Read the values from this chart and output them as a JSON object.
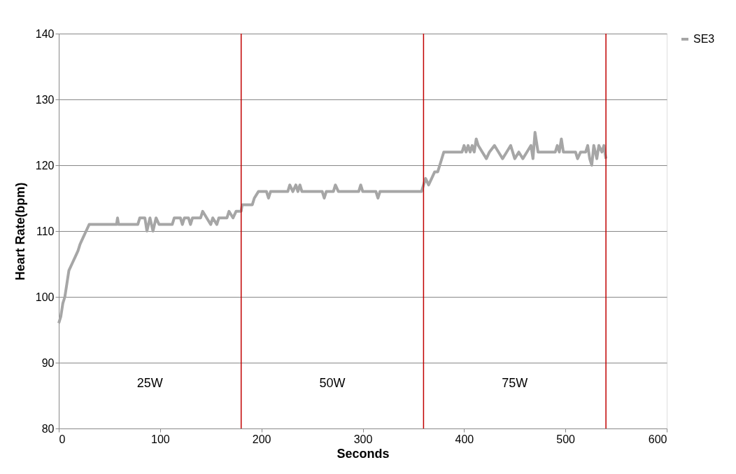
{
  "chart_data": {
    "type": "line",
    "xlabel": "Seconds",
    "ylabel": "Heart Rate(bpm)",
    "xlim": [
      0,
      600
    ],
    "xticks": [
      0,
      100,
      200,
      300,
      400,
      500,
      600
    ],
    "ylim": [
      80,
      140
    ],
    "yticks": [
      80,
      90,
      100,
      110,
      120,
      130,
      140
    ],
    "grid": "y",
    "legend": "right",
    "marker": "none",
    "line_style": "solid",
    "series": [
      {
        "name": "SE3",
        "color": "#a6a6a6",
        "x": [
          0,
          2,
          4,
          6,
          8,
          10,
          13,
          16,
          19,
          21,
          24,
          27,
          30,
          57,
          58,
          59,
          78,
          80,
          85,
          87,
          90,
          93,
          96,
          99,
          112,
          114,
          120,
          122,
          124,
          128,
          130,
          132,
          140,
          142,
          146,
          150,
          152,
          156,
          158,
          166,
          168,
          172,
          175,
          180,
          181,
          191,
          193,
          197,
          205,
          207,
          209,
          226,
          228,
          231,
          234,
          236,
          238,
          240,
          260,
          262,
          264,
          271,
          273,
          276,
          296,
          298,
          300,
          313,
          315,
          317,
          358,
          360,
          362,
          365,
          368,
          371,
          374,
          376,
          378,
          380,
          398,
          400,
          402,
          404,
          406,
          408,
          410,
          412,
          414,
          418,
          422,
          425,
          430,
          434,
          438,
          442,
          446,
          450,
          454,
          458,
          462,
          466,
          468,
          470,
          473,
          490,
          492,
          494,
          496,
          498,
          510,
          512,
          515,
          520,
          522,
          524,
          526,
          528,
          531,
          533,
          536,
          538,
          540
        ],
        "values": [
          96,
          97,
          99,
          100,
          102,
          104,
          105,
          106,
          107,
          108,
          109,
          110,
          111,
          111,
          112,
          111,
          111,
          112,
          112,
          110,
          112,
          110,
          112,
          111,
          111,
          112,
          112,
          111,
          112,
          112,
          111,
          112,
          112,
          113,
          112,
          111,
          112,
          111,
          112,
          112,
          113,
          112,
          113,
          113,
          114,
          114,
          115,
          116,
          116,
          115,
          116,
          116,
          117,
          116,
          117,
          116,
          117,
          116,
          116,
          115,
          116,
          116,
          117,
          116,
          116,
          117,
          116,
          116,
          115,
          116,
          116,
          117,
          118,
          117,
          118,
          119,
          119,
          120,
          121,
          122,
          122,
          123,
          122,
          123,
          122,
          123,
          122,
          124,
          123,
          122,
          121,
          122,
          123,
          122,
          121,
          122,
          123,
          121,
          122,
          121,
          122,
          123,
          121,
          125,
          122,
          122,
          123,
          122,
          124,
          122,
          122,
          121,
          122,
          122,
          123,
          121,
          120,
          123,
          121,
          123,
          122,
          123,
          121
        ]
      }
    ],
    "ref_lines": [
      {
        "axis": "x",
        "value": 180,
        "color": "#c00000"
      },
      {
        "axis": "x",
        "value": 360,
        "color": "#c00000"
      },
      {
        "axis": "x",
        "value": 540,
        "color": "#c00000"
      }
    ],
    "annotations": [
      "25W",
      "50W",
      "75W"
    ]
  }
}
